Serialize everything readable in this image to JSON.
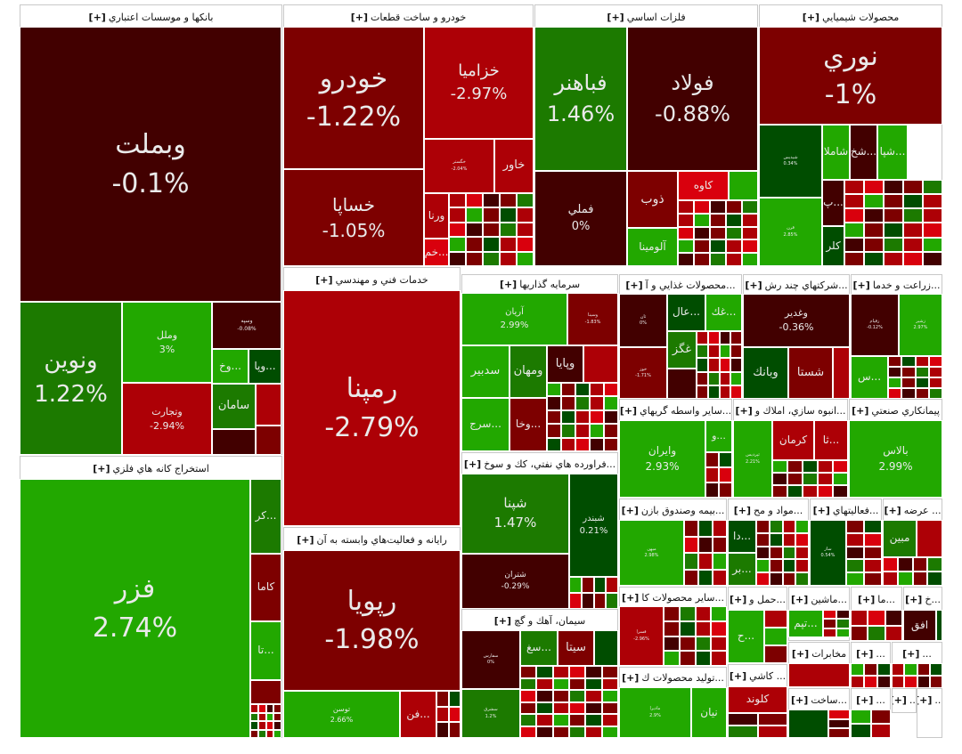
{
  "expand_label": "[+]",
  "colors": {
    "dark_red": "#420000",
    "maroon": "#7d0000",
    "red": "#ad0006",
    "bright_red": "#d9000d",
    "dark_green": "#004d00",
    "green": "#1c7a00",
    "bright_green": "#22a800"
  },
  "filler_colors": [
    "#7d0000",
    "#ad0006",
    "#420000",
    "#1c7a00",
    "#22a800",
    "#004d00",
    "#d9000d",
    "#7d0000",
    "#ad0006"
  ],
  "sectors": [
    {
      "title": "بانکها و موسسات اعتباري",
      "tiles": [
        {
          "name": "وبملت",
          "change": "-0.1%",
          "color": "#420000"
        },
        {
          "name": "ونوين",
          "change": "1.22%",
          "color": "#1c7a00"
        },
        {
          "name": "وملل",
          "change": "3%",
          "color": "#22a800"
        },
        {
          "name": "وتجارت",
          "change": "-2.94%",
          "color": "#ad0006"
        },
        {
          "name": "وسپه",
          "change": "-0.08%",
          "color": "#420000"
        },
        {
          "name": "...وخ",
          "color": "#22a800"
        },
        {
          "name": "...وپا",
          "color": "#004d00"
        },
        {
          "name": "سامان",
          "color": "#1c7a00"
        },
        {
          "color": "#ad0006"
        },
        {
          "color": "#420000"
        },
        {
          "color": "#7d0000"
        }
      ]
    },
    {
      "title": "استخراج کانه هاي فلزي",
      "tiles": [
        {
          "name": "فزر",
          "change": "2.74%",
          "color": "#22a800"
        },
        {
          "name": "...کر",
          "color": "#1c7a00"
        },
        {
          "name": "کاما",
          "color": "#7d0000"
        },
        {
          "name": "...تا",
          "color": "#22a800"
        },
        {
          "color": "#7d0000"
        }
      ]
    },
    {
      "title": "خودرو و ساخت قطعات",
      "tiles": [
        {
          "name": "خودرو",
          "change": "-1.22%",
          "color": "#7d0000"
        },
        {
          "name": "خساپا",
          "change": "-1.05%",
          "color": "#7d0000"
        },
        {
          "name": "خزاميا",
          "change": "-2.97%",
          "color": "#ad0006"
        },
        {
          "name": "خگستر",
          "change": "-2.04%",
          "color": "#ad0006"
        },
        {
          "name": "خاور",
          "color": "#ad0006"
        },
        {
          "name": "ورنا",
          "color": "#ad0006"
        },
        {
          "name": "...خم",
          "color": "#d9000d"
        }
      ]
    },
    {
      "title": "فلزات اساسي",
      "tiles": [
        {
          "name": "فباهنر",
          "change": "1.46%",
          "color": "#1c7a00"
        },
        {
          "name": "فولاد",
          "change": "-0.88%",
          "color": "#420000"
        },
        {
          "name": "فملي",
          "change": "0%",
          "color": "#420000"
        },
        {
          "name": "ذوب",
          "color": "#7d0000"
        },
        {
          "name": "آلومينا",
          "color": "#22a800"
        },
        {
          "name": "کاوه",
          "color": "#d9000d"
        },
        {
          "color": "#22a800"
        }
      ]
    },
    {
      "title": "محصولات شيميايي",
      "tiles": [
        {
          "name": "نوري",
          "change": "-1%",
          "color": "#7d0000"
        },
        {
          "name": "شيديس",
          "change": "0.34%",
          "color": "#004d00"
        },
        {
          "name": "قرن",
          "change": "2.85%",
          "color": "#22a800"
        },
        {
          "name": "شاملا",
          "color": "#22a800"
        },
        {
          "name": "...شخ",
          "color": "#420000"
        },
        {
          "name": "...شپا",
          "color": "#22a800"
        },
        {
          "name": "...پ",
          "color": "#420000"
        },
        {
          "name": "کلر",
          "color": "#004d00"
        }
      ]
    },
    {
      "title": "خدمات فني و مهندسي",
      "tiles": [
        {
          "name": "رمپنا",
          "change": "-2.79%",
          "color": "#ad0006"
        }
      ]
    },
    {
      "title": "رايانه و فعاليت‌هاي وابسته به آن",
      "tiles": [
        {
          "name": "رپويا",
          "change": "-1.98%",
          "color": "#7d0000"
        },
        {
          "name": "توسن",
          "change": "2.66%",
          "color": "#22a800"
        },
        {
          "name": "...فن",
          "color": "#ad0006"
        }
      ]
    },
    {
      "title": "سرمايه گذاريها",
      "tiles": [
        {
          "name": "آريان",
          "change": "2.99%",
          "color": "#22a800"
        },
        {
          "name": "وسينا",
          "change": "-1.83%",
          "color": "#7d0000"
        },
        {
          "name": "سدبير",
          "color": "#22a800"
        },
        {
          "name": "ومهان",
          "color": "#1c7a00"
        },
        {
          "name": "وپايا",
          "color": "#420000"
        },
        {
          "color": "#ad0006"
        },
        {
          "name": "...سرج",
          "color": "#22a800"
        },
        {
          "name": "...وخا",
          "color": "#7d0000"
        }
      ]
    },
    {
      "title": "...فراورده هاي نفتي، کك و سوخ",
      "tiles": [
        {
          "name": "شپنا",
          "change": "1.47%",
          "color": "#1c7a00"
        },
        {
          "name": "شبندر",
          "change": "0.21%",
          "color": "#004d00"
        },
        {
          "name": "شتران",
          "change": "-0.29%",
          "color": "#420000"
        }
      ]
    },
    {
      "title": "سيمان، آهك و گچ",
      "tiles": [
        {
          "name": "سفارس",
          "change": "0%",
          "color": "#420000"
        },
        {
          "name": "سشرق",
          "change": "1.2%",
          "color": "#1c7a00"
        },
        {
          "name": "...سغ",
          "color": "#1c7a00"
        },
        {
          "name": "سيتا",
          "color": "#7d0000"
        },
        {
          "color": "#004d00"
        }
      ]
    },
    {
      "title": "...محصولات غذايي و آ",
      "tiles": [
        {
          "name": "ثان",
          "change": "0%",
          "color": "#420000"
        },
        {
          "name": "خوز",
          "change": "-1.71%",
          "color": "#7d0000"
        },
        {
          "name": "...عال",
          "color": "#004d00"
        },
        {
          "name": "...غك",
          "color": "#22a800"
        },
        {
          "name": "غگز",
          "color": "#1c7a00"
        }
      ]
    },
    {
      "title": "...شركتهاي چند رش",
      "tiles": [
        {
          "name": "وغدير",
          "change": "-0.36%",
          "color": "#420000"
        },
        {
          "name": "وبانك",
          "color": "#004d00"
        },
        {
          "name": "شستا",
          "color": "#7d0000"
        },
        {
          "color": "#ad0006"
        }
      ]
    },
    {
      "title": "...زراعت و خدما",
      "tiles": [
        {
          "name": "زقيام",
          "change": "-0.12%",
          "color": "#420000"
        },
        {
          "name": "زشير",
          "change": "2.97%",
          "color": "#22a800"
        },
        {
          "name": "...س",
          "color": "#22a800"
        }
      ]
    },
    {
      "title": "...ساير واسطه گريهاي",
      "tiles": [
        {
          "name": "وايران",
          "change": "2.93%",
          "color": "#22a800"
        },
        {
          "name": "...و",
          "color": "#22a800"
        }
      ]
    },
    {
      "title": "...انبوه سازي، املاك و",
      "tiles": [
        {
          "name": "ثپرديس",
          "change": "2.21%",
          "color": "#22a800"
        },
        {
          "name": "كرمان",
          "color": "#ad0006"
        },
        {
          "name": "...ثا",
          "color": "#ad0006"
        }
      ]
    },
    {
      "title": "پيمانكاري صنعتي",
      "tiles": [
        {
          "name": "بالاس",
          "change": "2.99%",
          "color": "#22a800"
        }
      ]
    },
    {
      "title": "...بيمه وصندوق بازن",
      "tiles": [
        {
          "name": "ميهن",
          "change": "2.98%",
          "color": "#22a800"
        }
      ]
    },
    {
      "title": "...مواد و مح",
      "tiles": [
        {
          "name": "...دا",
          "color": "#004d00"
        },
        {
          "name": "...بر",
          "color": "#1c7a00"
        }
      ]
    },
    {
      "title": "...فعاليتهاي",
      "tiles": [
        {
          "name": "ساز",
          "change": "0.54%",
          "color": "#004d00"
        }
      ]
    },
    {
      "title": "... عرضه",
      "tiles": [
        {
          "name": "مبين",
          "color": "#1c7a00"
        }
      ]
    },
    {
      "title": "...ساير محصولات كا",
      "tiles": [
        {
          "name": "فسرا",
          "change": "-2.96%",
          "color": "#ad0006"
        }
      ]
    },
    {
      "title": "...توليد محصولات ك",
      "tiles": [
        {
          "name": "ماديرا",
          "change": "2.9%",
          "color": "#22a800"
        },
        {
          "name": "نيان",
          "color": "#22a800"
        }
      ]
    },
    {
      "title": "...حمل و",
      "tiles": [
        {
          "name": "...ح",
          "color": "#22a800"
        }
      ]
    },
    {
      "title": "...ماشين",
      "tiles": [
        {
          "name": "...تپم",
          "color": "#22a800"
        }
      ]
    },
    {
      "title": "...ما",
      "tiles": []
    },
    {
      "title": "...خ",
      "tiles": [
        {
          "name": "افق",
          "color": "#420000"
        }
      ]
    },
    {
      "title": "... كاشي",
      "tiles": [
        {
          "name": "كلوند",
          "color": "#ad0006"
        }
      ]
    },
    {
      "title": "مخابرات",
      "tiles": [
        {
          "color": "#ad0006"
        }
      ]
    },
    {
      "title": "...ساخت",
      "tiles": [
        {
          "color": "#004d00"
        }
      ]
    },
    {
      "title": "...",
      "tiles": []
    },
    {
      "title": "...",
      "tiles": []
    },
    {
      "title": "...",
      "tiles": []
    },
    {
      "title": "...",
      "tiles": []
    },
    {
      "title": "...",
      "tiles": []
    }
  ]
}
